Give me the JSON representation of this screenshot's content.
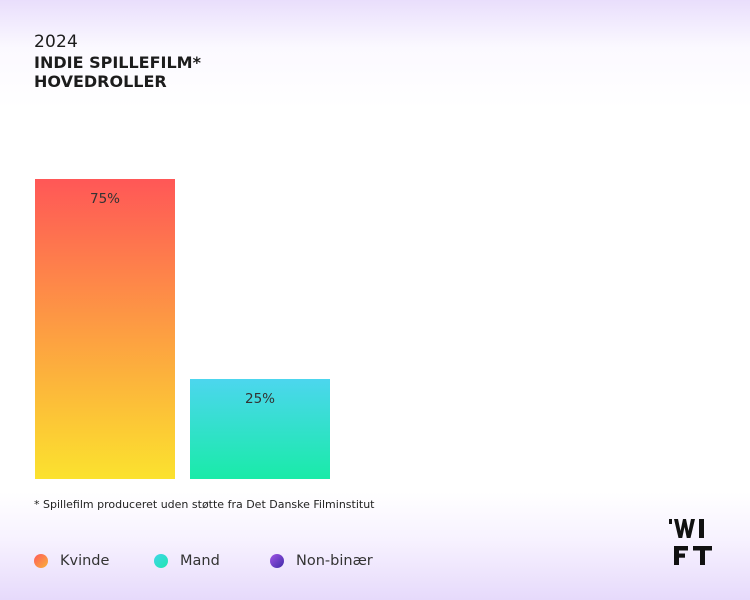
{
  "header": {
    "year": "2024",
    "title_line1": "INDIE SPILLEFILM*",
    "title_line2": "HOVEDROLLER"
  },
  "footnote": "*  Spillefilm produceret uden støtte fra Det Danske Filminstitut",
  "chart_data": {
    "type": "bar",
    "categories": [
      "Kvinde",
      "Mand",
      "Non-binær"
    ],
    "values": [
      75,
      25,
      0
    ],
    "value_labels": [
      "75%",
      "25%",
      ""
    ],
    "ylim": [
      0,
      100
    ],
    "unit": "%",
    "colors": {
      "Kvinde": [
        "#ff5757",
        "#fbe22e"
      ],
      "Mand": [
        "#4cd6ee",
        "#19eba8"
      ],
      "Non-binær": [
        "#9b4fe0",
        "#4a2fb0"
      ]
    },
    "legend_position": "bottom-left",
    "grid": false
  },
  "legend": [
    {
      "label": "Kvinde",
      "colors": [
        "#ff5a5a",
        "#f9b33a"
      ]
    },
    {
      "label": "Mand",
      "colors": [
        "#3fd6e8",
        "#1fe6b0"
      ]
    },
    {
      "label": "Non-binær",
      "colors": [
        "#a255e6",
        "#3e2aa8"
      ]
    }
  ],
  "logo": {
    "text": "WIFT",
    "icon": "wift-logo"
  }
}
